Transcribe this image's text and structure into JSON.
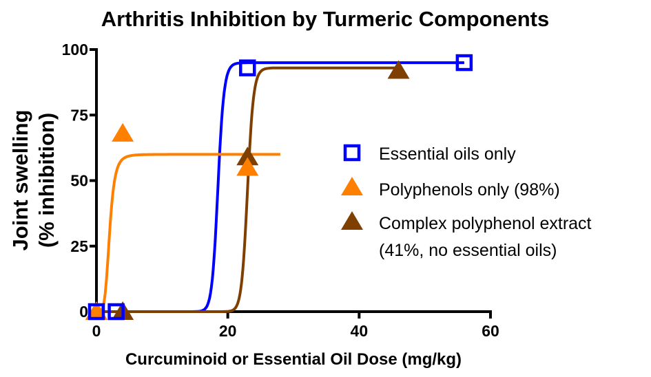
{
  "chart_data": {
    "type": "scatter",
    "title": "Arthritis Inhibition by Turmeric Components",
    "xlabel": "Curcuminoid or Essential Oil Dose (mg/kg)",
    "ylabel": [
      "Joint swelling",
      "(% inhibition)"
    ],
    "xlim": [
      0,
      60
    ],
    "ylim": [
      0,
      100
    ],
    "xticks": [
      "0",
      "20",
      "40",
      "60"
    ],
    "yticks": [
      "0",
      "25",
      "50",
      "75",
      "100"
    ],
    "grid": false,
    "legend_placement": "right",
    "series": [
      {
        "name": "Essential oils only",
        "marker": "open-square",
        "color": "#0000ff",
        "x": [
          0,
          3,
          23,
          56
        ],
        "y": [
          0,
          0,
          93,
          95
        ],
        "fit": {
          "bottom": 0,
          "top": 95,
          "ec50": 18.5,
          "hill": 40,
          "xmax": 56
        }
      },
      {
        "name": "Polyphenols only (98%)",
        "marker": "triangle",
        "color": "#ff8000",
        "x": [
          0,
          4,
          23
        ],
        "y": [
          0,
          68,
          55
        ],
        "fit": {
          "bottom": 0,
          "top": 60,
          "ec50": 2,
          "hill": 5,
          "xmax": 28
        }
      },
      {
        "name": [
          "Complex polyphenol extract",
          "(41%, no essential oils)"
        ],
        "marker": "triangle",
        "color": "#7f3f00",
        "x": [
          0,
          4,
          23,
          46
        ],
        "y": [
          0,
          0,
          59,
          92
        ],
        "fit": {
          "bottom": 0,
          "top": 93,
          "ec50": 23,
          "hill": 50,
          "xmax": 46
        }
      }
    ]
  }
}
